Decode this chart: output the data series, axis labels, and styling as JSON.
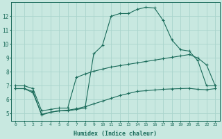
{
  "xlabel": "Humidex (Indice chaleur)",
  "xlim": [
    -0.5,
    23.5
  ],
  "ylim": [
    4.5,
    13.0
  ],
  "yticks": [
    5,
    6,
    7,
    8,
    9,
    10,
    11,
    12
  ],
  "xticks": [
    0,
    1,
    2,
    3,
    4,
    5,
    6,
    7,
    8,
    9,
    10,
    11,
    12,
    13,
    14,
    15,
    16,
    17,
    18,
    19,
    20,
    21,
    22,
    23
  ],
  "bg_color": "#c8e8e0",
  "grid_color": "#aad4cc",
  "line_color": "#1a6b5a",
  "line1_x": [
    0,
    1,
    2,
    3,
    4,
    5,
    6,
    7,
    8,
    9,
    10,
    11,
    12,
    13,
    14,
    15,
    16,
    17,
    18,
    19,
    20,
    21,
    22,
    23
  ],
  "line1_y": [
    6.8,
    6.8,
    6.6,
    4.9,
    5.1,
    5.2,
    5.2,
    5.3,
    5.4,
    9.3,
    9.9,
    12.0,
    12.2,
    12.2,
    12.5,
    12.65,
    12.6,
    11.7,
    10.3,
    9.6,
    9.5,
    8.8,
    7.0,
    7.0
  ],
  "line2_x": [
    0,
    1,
    2,
    3,
    4,
    5,
    6,
    7,
    8,
    9,
    10,
    11,
    12,
    13,
    14,
    15,
    16,
    17,
    18,
    19,
    20,
    21,
    22,
    23
  ],
  "line2_y": [
    7.0,
    7.0,
    6.8,
    5.2,
    5.3,
    5.4,
    5.4,
    7.6,
    7.85,
    8.05,
    8.2,
    8.35,
    8.45,
    8.55,
    8.65,
    8.75,
    8.85,
    8.95,
    9.05,
    9.15,
    9.25,
    9.0,
    8.5,
    7.0
  ],
  "line3_x": [
    0,
    1,
    2,
    3,
    4,
    5,
    6,
    7,
    8,
    9,
    10,
    11,
    12,
    13,
    14,
    15,
    16,
    17,
    18,
    19,
    20,
    21,
    22,
    23
  ],
  "line3_y": [
    6.8,
    6.8,
    6.5,
    4.95,
    5.1,
    5.2,
    5.25,
    5.35,
    5.5,
    5.7,
    5.9,
    6.1,
    6.3,
    6.45,
    6.6,
    6.65,
    6.7,
    6.75,
    6.78,
    6.8,
    6.82,
    6.75,
    6.72,
    6.8
  ]
}
